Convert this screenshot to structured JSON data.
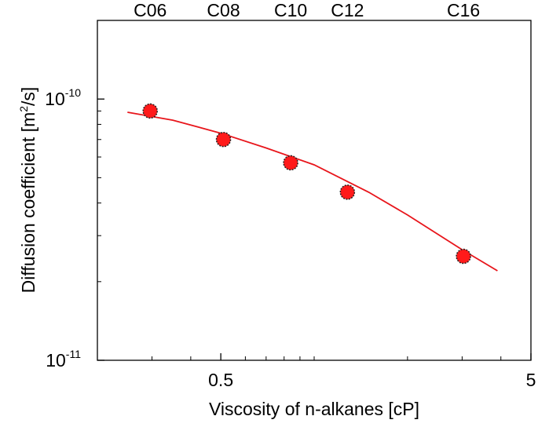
{
  "chart_data": {
    "type": "scatter",
    "xlabel": "Viscosity of n-alkanes [cP]",
    "ylabel": "Diffusion coefficient [m2/s]",
    "x_scale": "log",
    "y_scale": "log",
    "xlim": [
      0.2,
      5
    ],
    "ylim": [
      1e-11,
      2e-10
    ],
    "x_ticks": [
      {
        "value": 0.5,
        "label": "0.5"
      },
      {
        "value": 5,
        "label": "5"
      }
    ],
    "y_ticks": [
      {
        "value": 1e-10,
        "base": "10",
        "exp": "-10"
      },
      {
        "value": 1e-11,
        "base": "10",
        "exp": "-11"
      }
    ],
    "top_labels": [
      {
        "x": 0.296,
        "label": "C06"
      },
      {
        "x": 0.51,
        "label": "C08"
      },
      {
        "x": 0.84,
        "label": "C10"
      },
      {
        "x": 1.28,
        "label": "C12"
      },
      {
        "x": 3.03,
        "label": "C16"
      }
    ],
    "series": [
      {
        "kind": "points",
        "x": [
          0.296,
          0.51,
          0.84,
          1.28,
          3.03
        ],
        "y": [
          9e-11,
          7e-11,
          5.7e-11,
          4.4e-11,
          2.5e-11
        ]
      },
      {
        "kind": "fit-line",
        "x": [
          0.25,
          0.35,
          0.5,
          0.7,
          1.0,
          1.5,
          2.0,
          3.0,
          3.9
        ],
        "y": [
          8.9e-11,
          8.3e-11,
          7.4e-11,
          6.5e-11,
          5.6e-11,
          4.4e-11,
          3.6e-11,
          2.65e-11,
          2.2e-11
        ]
      }
    ],
    "colors": {
      "points": "#ff1a1a",
      "point_edge": "#222222",
      "line": "#e8151b"
    },
    "grid": false,
    "legend": "none"
  }
}
